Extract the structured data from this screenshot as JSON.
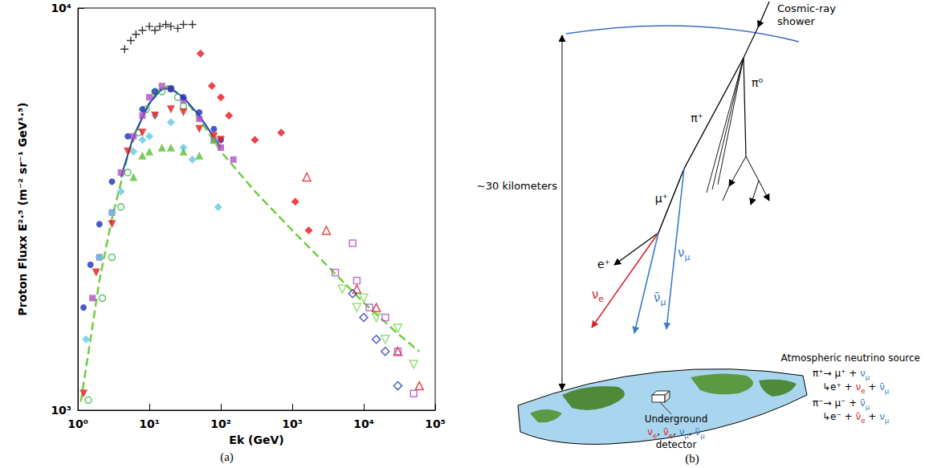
{
  "chart_data": {
    "type": "scatter",
    "caption": "(a)",
    "x_label": "Ek (GeV)",
    "y_label": "Proton Fluxx E²·⁵ (m⁻² sr⁻¹ GeV¹·⁵)",
    "log": true,
    "grid": false,
    "xlim": [
      1,
      100000
    ],
    "xticks": [
      {
        "value": 1,
        "label": "10⁰"
      },
      {
        "value": 10,
        "label": "10¹"
      },
      {
        "value": 100,
        "label": "10²"
      },
      {
        "value": 1000,
        "label": "10³"
      },
      {
        "value": 10000,
        "label": "10⁴"
      },
      {
        "value": 100000,
        "label": "10⁵"
      }
    ],
    "ylim": [
      1000,
      10000
    ],
    "yticks": [
      {
        "value": 1000,
        "label": "10³"
      },
      {
        "value": 10000,
        "label": "10⁴"
      }
    ],
    "series": [
      {
        "type": "line",
        "line_style": "dashed",
        "color": "#6fcf3f",
        "x": [
          1.1,
          1.5,
          2,
          3,
          5,
          8,
          12,
          18,
          30,
          50,
          100,
          300,
          1000,
          3000,
          10000,
          30000,
          60000
        ],
        "values": [
          1050,
          1500,
          2100,
          3000,
          4300,
          5400,
          6100,
          6400,
          6000,
          5300,
          4400,
          3500,
          2800,
          2300,
          1850,
          1550,
          1400
        ]
      },
      {
        "type": "line",
        "line_style": "solid",
        "color": "#1f3fbf",
        "x": [
          4,
          6,
          10,
          15,
          20,
          30,
          50,
          100
        ],
        "values": [
          3800,
          4800,
          5800,
          6300,
          6300,
          6000,
          5400,
          4500
        ]
      },
      {
        "marker": "plus",
        "color": "#000000",
        "x": [
          4.5,
          5.5,
          6.5,
          8,
          10,
          12,
          14,
          17,
          20,
          25,
          30,
          40
        ],
        "values": [
          7900,
          8300,
          8600,
          8800,
          9000,
          8800,
          9000,
          9100,
          9000,
          8900,
          9100,
          9100
        ]
      },
      {
        "marker": "diamond",
        "color": "#e8141b",
        "x": [
          52,
          75,
          100,
          130,
          300,
          700,
          1100,
          1700
        ],
        "values": [
          7700,
          6400,
          6000,
          5400,
          4700,
          4900,
          3300,
          2800
        ]
      },
      {
        "marker": "circle-open",
        "color": "#3cb54a",
        "x": [
          1.4,
          2.2,
          3,
          4,
          5,
          7,
          9,
          12,
          15,
          20,
          25,
          30
        ],
        "values": [
          1060,
          1900,
          2400,
          3200,
          3900,
          4900,
          5600,
          6200,
          6200,
          6300,
          6000,
          5700
        ]
      },
      {
        "marker": "square",
        "color": "#b04fc8",
        "x": [
          1.6,
          2,
          3,
          4,
          6,
          8,
          10,
          15,
          20,
          30,
          50,
          80,
          100,
          150
        ],
        "values": [
          1900,
          2400,
          3100,
          3900,
          4800,
          5400,
          6000,
          6400,
          6300,
          5900,
          5300,
          4700,
          4500,
          4200
        ]
      },
      {
        "marker": "circle",
        "color": "#1d2fb5",
        "x": [
          1.2,
          1.5,
          2,
          3,
          5,
          8,
          12,
          20,
          30,
          50,
          80,
          100
        ],
        "values": [
          1800,
          2300,
          2900,
          3700,
          4800,
          5600,
          6200,
          6300,
          6000,
          5500,
          5000,
          4700
        ]
      },
      {
        "marker": "diamond",
        "color": "#5fc8e8",
        "x": [
          1.3,
          2,
          3,
          4,
          6,
          8,
          10,
          12,
          20,
          30,
          40,
          92
        ],
        "values": [
          1500,
          2400,
          3100,
          3500,
          4400,
          4700,
          4800,
          5400,
          5200,
          4500,
          4200,
          3200
        ]
      },
      {
        "marker": "triangle-down",
        "color": "#e31a1c",
        "x": [
          1.2,
          1.8,
          3,
          5,
          8,
          12,
          20,
          30,
          50,
          80,
          100
        ],
        "values": [
          1100,
          2200,
          2900,
          4400,
          4900,
          5400,
          5600,
          5500,
          5000,
          4800,
          4700
        ]
      },
      {
        "marker": "triangle",
        "color": "#5cc035",
        "x": [
          6,
          8,
          10,
          15,
          20,
          30,
          50,
          80
        ],
        "values": [
          3800,
          4300,
          4400,
          4500,
          4500,
          4400,
          4300,
          4700
        ]
      },
      {
        "marker": "triangle-open",
        "color": "#e31a1c",
        "x": [
          1600,
          3000,
          8000,
          15000,
          30000,
          60000
        ],
        "values": [
          3800,
          2800,
          2000,
          1800,
          1400,
          1150
        ]
      },
      {
        "marker": "square-open",
        "color": "#b04fc8",
        "x": [
          4000,
          7000,
          8000,
          12000,
          20000,
          30000,
          50000
        ],
        "values": [
          2200,
          2600,
          2100,
          1800,
          1700,
          1400,
          1100
        ]
      },
      {
        "marker": "diamond-open",
        "color": "#2233bb",
        "x": [
          7000,
          10000,
          15000,
          20000,
          30000
        ],
        "values": [
          1950,
          1700,
          1500,
          1400,
          1150
        ]
      },
      {
        "marker": "triangle-down-open",
        "color": "#7ed957",
        "x": [
          5000,
          8000,
          10000,
          15000,
          20000,
          30000,
          50000
        ],
        "values": [
          2000,
          1800,
          1900,
          1700,
          1500,
          1600,
          1300
        ]
      }
    ]
  },
  "diagram": {
    "caption": "(b)",
    "shower_label": "Cosmic-ray shower",
    "height_label": "~30 kilometers",
    "particles": {
      "pi_plus": "π⁺",
      "pi_zero": "π⁰",
      "mu_plus": "μ⁺",
      "e_plus": "e⁺"
    },
    "neutrinos": [
      {
        "text": "ν",
        "sub": "e",
        "color": "#d9262b"
      },
      {
        "text": "ν̄",
        "sub": "μ",
        "color": "#3d7cc9"
      },
      {
        "text": "ν",
        "sub": "μ",
        "color": "#3d7cc9"
      }
    ],
    "detector": {
      "title": "Underground",
      "particles": [
        {
          "text": "ν",
          "sub": "e",
          "color": "#d9262b"
        },
        {
          "text": ", "
        },
        {
          "text": "ν̄",
          "sub": "e",
          "color": "#d9262b"
        },
        {
          "text": ", "
        },
        {
          "text": "ν",
          "sub": "μ",
          "color": "#3d7cc9"
        },
        {
          "text": ", "
        },
        {
          "text": "ν̄",
          "sub": "μ",
          "color": "#3d7cc9"
        }
      ],
      "label": "detector"
    },
    "source": {
      "title": "Atmospheric neutrino source",
      "lines": [
        [
          {
            "text": "π⁺→ μ⁺ + "
          },
          {
            "text": "ν",
            "sub": "μ",
            "color": "#3d7cc9"
          }
        ],
        [
          {
            "text": "↳e⁺ + "
          },
          {
            "text": "ν",
            "sub": "e",
            "color": "#d9262b"
          },
          {
            "text": " + "
          },
          {
            "text": "ν̄",
            "sub": "μ",
            "color": "#3d7cc9"
          }
        ],
        [
          {
            "text": "π⁻→ μ⁻ + "
          },
          {
            "text": "ν̄",
            "sub": "μ",
            "color": "#3d7cc9"
          }
        ],
        [
          {
            "text": "↳e⁻ + "
          },
          {
            "text": "ν̄",
            "sub": "e",
            "color": "#d9262b"
          },
          {
            "text": " + "
          },
          {
            "text": "ν",
            "sub": "μ",
            "color": "#3d7cc9"
          }
        ]
      ]
    }
  }
}
